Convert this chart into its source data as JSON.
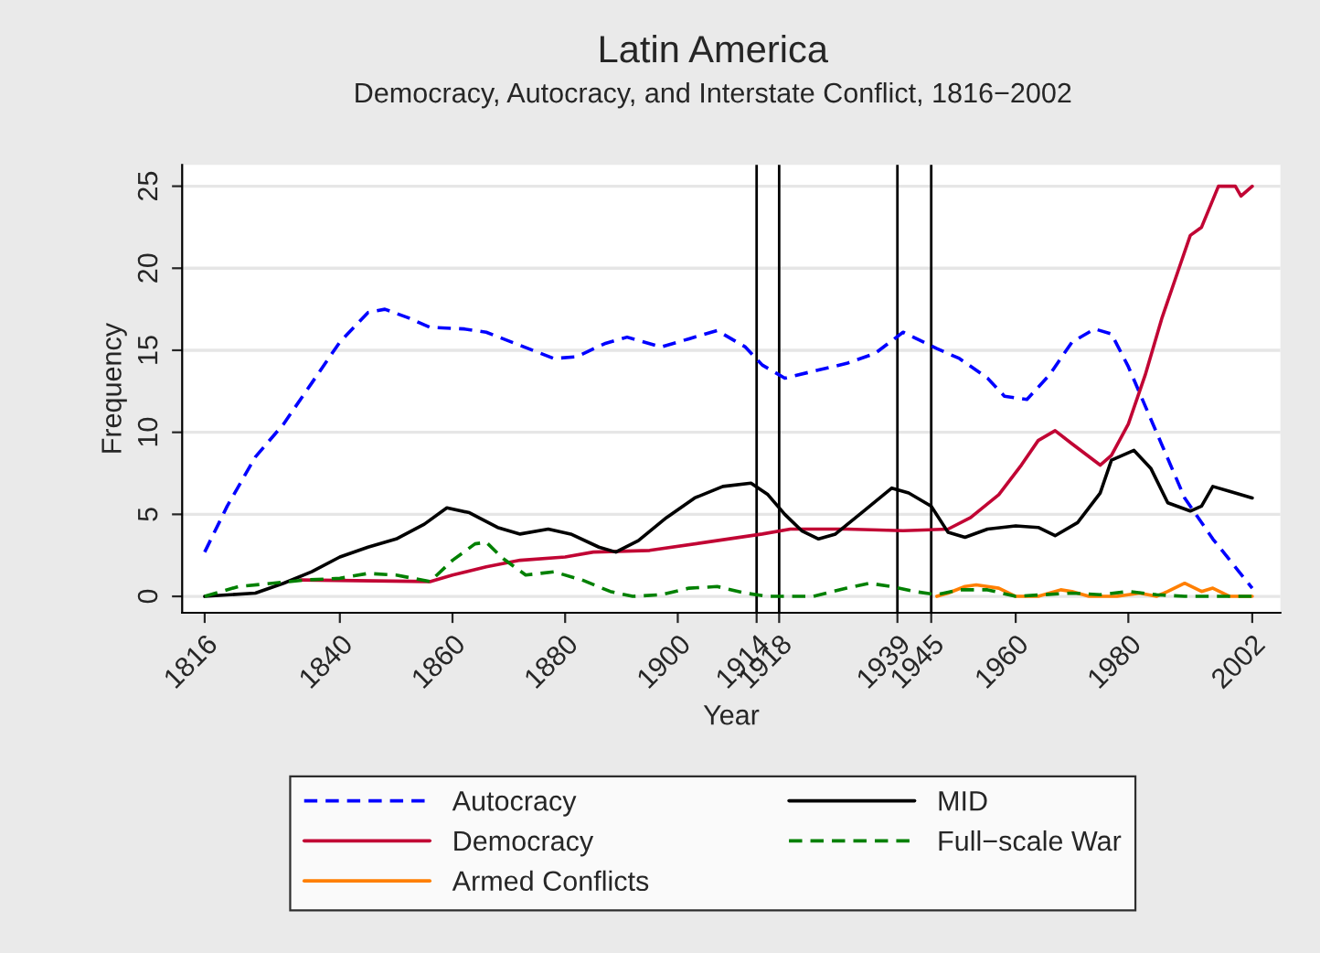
{
  "chart_data": {
    "type": "line",
    "title": "Latin America",
    "subtitle": "Democracy, Autocracy, and Interstate Conflict, 1816−2002",
    "xlabel": "Year",
    "ylabel": "Frequency",
    "xlim": [
      1812,
      2007
    ],
    "ylim": [
      -1,
      26.3
    ],
    "xticks": [
      1816,
      1840,
      1860,
      1880,
      1900,
      1914,
      1918,
      1939,
      1945,
      1960,
      1980,
      2002
    ],
    "yticks": [
      0,
      5,
      10,
      15,
      20,
      25
    ],
    "grid": "y",
    "legend": "bottom",
    "ref_lines": [
      {
        "axis": "x",
        "value": 1914,
        "color": "#000000"
      },
      {
        "axis": "x",
        "value": 1918,
        "color": "#000000"
      },
      {
        "axis": "x",
        "value": 1939,
        "color": "#000000"
      },
      {
        "axis": "x",
        "value": 1945,
        "color": "#000000"
      }
    ],
    "series": [
      {
        "name": "Autocracy",
        "color": "#0000ff",
        "line_style": "dashed",
        "x": [
          1816,
          1820,
          1825,
          1830,
          1835,
          1840,
          1845,
          1848,
          1852,
          1856,
          1862,
          1866,
          1872,
          1878,
          1882,
          1887,
          1891,
          1897,
          1902,
          1907,
          1912,
          1915,
          1919,
          1925,
          1930,
          1935,
          1940,
          1946,
          1950,
          1955,
          1958,
          1962,
          1966,
          1970,
          1974,
          1977,
          1980,
          1985,
          1990,
          1995,
          2002
        ],
        "values": [
          2.7,
          5.5,
          8.5,
          10.5,
          13,
          15.5,
          17.3,
          17.5,
          17,
          16.4,
          16.3,
          16.1,
          15.3,
          14.5,
          14.6,
          15.4,
          15.8,
          15.2,
          15.7,
          16.2,
          15.2,
          14.1,
          13.3,
          13.8,
          14.2,
          14.8,
          16.1,
          15.1,
          14.5,
          13.3,
          12.2,
          12.0,
          13.5,
          15.5,
          16.3,
          16.0,
          14,
          10,
          6,
          3.5,
          0.5
        ]
      },
      {
        "name": "Democracy",
        "color": "#c10534",
        "line_style": "solid",
        "x": [
          1833,
          1856,
          1860,
          1866,
          1872,
          1880,
          1885,
          1895,
          1905,
          1915,
          1920,
          1930,
          1940,
          1948,
          1952,
          1957,
          1961,
          1964,
          1967,
          1970,
          1975,
          1977,
          1980,
          1983,
          1986,
          1989,
          1991,
          1993,
          1996,
          1999,
          2000,
          2002
        ],
        "values": [
          1.0,
          0.9,
          1.3,
          1.8,
          2.2,
          2.4,
          2.7,
          2.8,
          3.3,
          3.8,
          4.1,
          4.1,
          4.0,
          4.1,
          4.8,
          6.2,
          8,
          9.5,
          10.1,
          9.3,
          8.0,
          8.6,
          10.5,
          13.5,
          17,
          20,
          22,
          22.5,
          25,
          25,
          24.4,
          25
        ]
      },
      {
        "name": "Armed Conflicts",
        "color": "#ff7f00",
        "line_style": "solid",
        "x": [
          1946,
          1948,
          1951,
          1953,
          1957,
          1960,
          1964,
          1968,
          1970,
          1973,
          1978,
          1982,
          1985,
          1987,
          1990,
          1993,
          1995,
          1998,
          2002
        ],
        "values": [
          0,
          0.2,
          0.6,
          0.7,
          0.5,
          0,
          0,
          0.4,
          0.3,
          0,
          0,
          0.2,
          0,
          0.3,
          0.8,
          0.3,
          0.5,
          0,
          0
        ]
      },
      {
        "name": "MID",
        "color": "#000000",
        "line_style": "solid",
        "x": [
          1816,
          1825,
          1830,
          1835,
          1840,
          1845,
          1850,
          1855,
          1859,
          1863,
          1868,
          1872,
          1877,
          1881,
          1886,
          1889,
          1893,
          1898,
          1903,
          1908,
          1913,
          1916,
          1919,
          1922,
          1925,
          1928,
          1933,
          1938,
          1941,
          1945,
          1948,
          1951,
          1955,
          1960,
          1964,
          1967,
          1971,
          1975,
          1977,
          1981,
          1984,
          1987,
          1991,
          1993,
          1995,
          1998,
          2002
        ],
        "values": [
          0,
          0.2,
          0.8,
          1.5,
          2.4,
          3.0,
          3.5,
          4.4,
          5.4,
          5.1,
          4.2,
          3.8,
          4.1,
          3.8,
          3.0,
          2.7,
          3.4,
          4.8,
          6.0,
          6.7,
          6.9,
          6.2,
          5.0,
          4.0,
          3.5,
          3.8,
          5.2,
          6.6,
          6.3,
          5.5,
          3.9,
          3.6,
          4.1,
          4.3,
          4.2,
          3.7,
          4.5,
          6.3,
          8.3,
          8.9,
          7.8,
          5.7,
          5.2,
          5.5,
          6.7,
          6.4,
          6.0
        ]
      },
      {
        "name": "Full−scale War",
        "color": "#008000",
        "line_style": "dashed",
        "x": [
          1816,
          1822,
          1828,
          1834,
          1840,
          1845,
          1850,
          1856,
          1860,
          1864,
          1866,
          1869,
          1873,
          1878,
          1883,
          1888,
          1892,
          1897,
          1902,
          1907,
          1912,
          1916,
          1924,
          1930,
          1934,
          1938,
          1942,
          1946,
          1950,
          1955,
          1960,
          1965,
          1970,
          1975,
          1980,
          1985,
          1990,
          1995,
          2002
        ],
        "values": [
          0,
          0.6,
          0.8,
          1.0,
          1.1,
          1.4,
          1.3,
          0.9,
          2.2,
          3.2,
          3.3,
          2.3,
          1.3,
          1.5,
          1.0,
          0.3,
          0,
          0.1,
          0.5,
          0.6,
          0.2,
          0,
          0,
          0.5,
          0.8,
          0.6,
          0.3,
          0.1,
          0.4,
          0.4,
          0,
          0.1,
          0.2,
          0.1,
          0.3,
          0.1,
          0,
          0,
          0
        ]
      }
    ]
  }
}
